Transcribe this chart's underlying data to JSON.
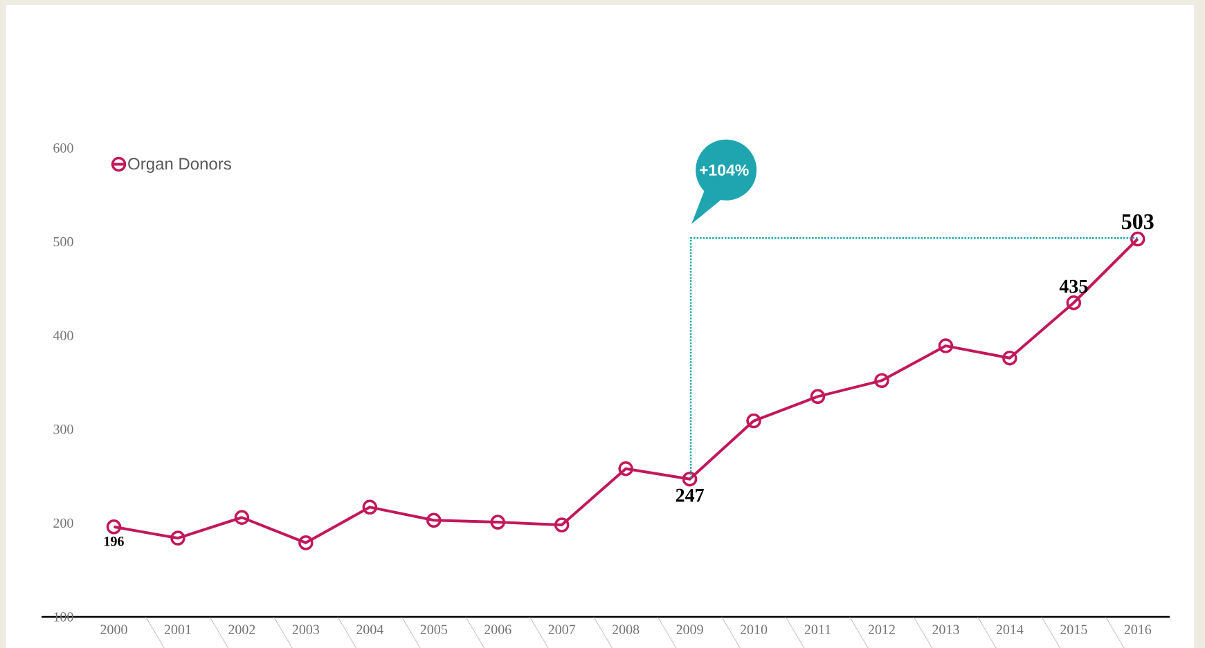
{
  "chart_data": {
    "type": "line",
    "categories": [
      "2000",
      "2001",
      "2002",
      "2003",
      "2004",
      "2005",
      "2006",
      "2007",
      "2008",
      "2009",
      "2010",
      "2011",
      "2012",
      "2013",
      "2014",
      "2015",
      "2016"
    ],
    "series": [
      {
        "name": "Organ Donors",
        "color": "#c2185b",
        "values": [
          196,
          184,
          206,
          179,
          217,
          203,
          201,
          198,
          258,
          247,
          309,
          335,
          352,
          389,
          376,
          435,
          503
        ],
        "value_labels": [
          "196",
          null,
          null,
          null,
          null,
          null,
          null,
          null,
          null,
          "247",
          null,
          null,
          null,
          null,
          null,
          "435",
          "503"
        ]
      }
    ],
    "ylim": [
      100,
      600
    ],
    "yticks": [
      100,
      200,
      300,
      400,
      500,
      600
    ],
    "legend": "top left",
    "marker": "circle",
    "line_style": "solid",
    "annotations": [
      "+104%"
    ]
  }
}
